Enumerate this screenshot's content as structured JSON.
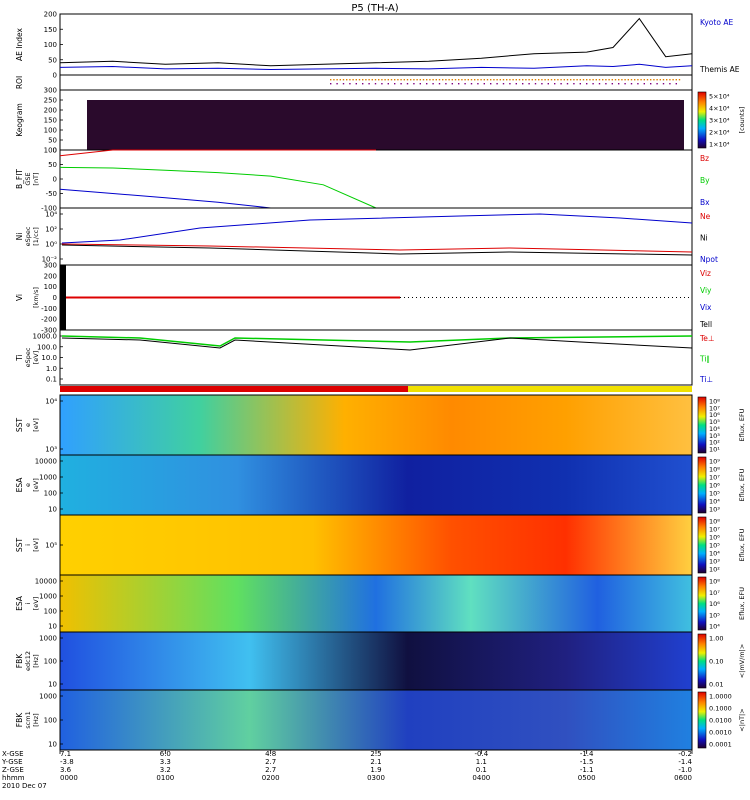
{
  "title": "P5 (TH-A)",
  "colors": {
    "red": "#dd0000",
    "green": "#00cc00",
    "blue": "#0000cc",
    "black": "#000000"
  },
  "chart_data": [
    {
      "type": "line",
      "panel": "ae",
      "ylabel": "AE Index",
      "ylim": [
        0,
        200
      ],
      "yticks": [
        "0",
        "50",
        "100",
        "150",
        "200"
      ],
      "x": [
        "0000",
        "0030",
        "0100",
        "0130",
        "0200",
        "0230",
        "0300",
        "0330",
        "0400",
        "0430",
        "0500",
        "0515",
        "0530",
        "0545",
        "0600"
      ],
      "series": [
        {
          "name": "Kyoto AE",
          "color": "blue",
          "values": [
            25,
            28,
            20,
            22,
            18,
            20,
            22,
            20,
            25,
            22,
            30,
            28,
            35,
            25,
            30
          ]
        },
        {
          "name": "Themis AE",
          "color": "black",
          "values": [
            40,
            45,
            35,
            40,
            30,
            35,
            40,
            45,
            55,
            70,
            75,
            90,
            185,
            60,
            70
          ]
        }
      ]
    },
    {
      "type": "scatter",
      "panel": "roi",
      "ylabel": "ROI"
    },
    {
      "type": "heatmap",
      "panel": "keogram",
      "ylabel": "Keogram",
      "ylim": [
        0,
        300
      ],
      "yticks": [
        "0",
        "50",
        "100",
        "150",
        "200",
        "250",
        "300"
      ],
      "colorbar_label": "[counts]",
      "colorbar_ticks": [
        "5×10⁴",
        "4×10⁴",
        "3×10⁴",
        "2×10⁴",
        "1×10⁴"
      ]
    },
    {
      "type": "line",
      "panel": "bfit",
      "ylabel": "B_FIT",
      "ysub": "GSE",
      "yunit": "[nT]",
      "ylim": [
        -100,
        100
      ],
      "yticks": [
        "-100",
        "-50",
        "0",
        "50",
        "100"
      ],
      "x": [
        "0000",
        "0030",
        "0100",
        "0130",
        "0200",
        "0230",
        "0300"
      ],
      "series": [
        {
          "name": "Bz",
          "color": "red",
          "values": [
            80,
            100,
            100,
            100,
            100,
            100,
            100
          ]
        },
        {
          "name": "By",
          "color": "green",
          "values": [
            40,
            38,
            30,
            22,
            10,
            -20,
            -100
          ]
        },
        {
          "name": "Bx",
          "color": "blue",
          "values": [
            -35,
            -50,
            -65,
            -80,
            -100,
            -100,
            -100
          ]
        }
      ]
    },
    {
      "type": "line",
      "panel": "ni",
      "ylabel": "Ni",
      "ysub": "eSpec",
      "yunit": "[1/cc]",
      "yscale": "log",
      "yticks": [
        "10⁴",
        "10²",
        "10⁰",
        "10⁻²"
      ],
      "series": [
        {
          "name": "Ne",
          "color": "red"
        },
        {
          "name": "Ni",
          "color": "black"
        },
        {
          "name": "Npot",
          "color": "blue"
        }
      ]
    },
    {
      "type": "line",
      "panel": "vi",
      "ylabel": "Vi",
      "yunit": "[km/s]",
      "ylim": [
        -300,
        300
      ],
      "yticks": [
        "300",
        "200",
        "100",
        "0",
        "-100",
        "-200",
        "-300"
      ],
      "series": [
        {
          "name": "Viz",
          "color": "red"
        },
        {
          "name": "Viy",
          "color": "green"
        },
        {
          "name": "Vix",
          "color": "blue"
        },
        {
          "name": "Tell",
          "color": "black"
        }
      ]
    },
    {
      "type": "line",
      "panel": "ti",
      "ylabel": "Ti",
      "ysub": "eSpec",
      "yunit": "[eV]",
      "yscale": "log",
      "yticks": [
        "1000.0",
        "100.0",
        "10.0",
        "1.0",
        "0.1"
      ],
      "series": [
        {
          "name": "Te⊥",
          "color": "red"
        },
        {
          "name": "Ti∥",
          "color": "green"
        },
        {
          "name": "Ti⊥",
          "color": "blue"
        }
      ]
    },
    {
      "type": "heatmap",
      "panel": "sst-e",
      "ylabel": "SST",
      "ysub": "e",
      "yunit": "[eV]",
      "yscale": "log",
      "yticks": [
        "10⁴",
        "10³"
      ],
      "colorbar_label": "Eflux, EFU",
      "colorbar_ticks": [
        "10⁸",
        "10⁷",
        "10⁶",
        "10⁵",
        "10⁴",
        "10³",
        "10²",
        "10¹"
      ]
    },
    {
      "type": "heatmap",
      "panel": "esa-e",
      "ylabel": "ESA",
      "ysub": "e",
      "yunit": "[eV]",
      "yscale": "log",
      "yticks": [
        "10000",
        "1000",
        "100",
        "10"
      ],
      "colorbar_label": "Eflux, EFU",
      "colorbar_ticks": [
        "10⁹",
        "10⁸",
        "10⁷",
        "10⁶",
        "10⁵",
        "10⁴",
        "10³"
      ]
    },
    {
      "type": "heatmap",
      "panel": "sst-i",
      "ylabel": "SST",
      "ysub": "i",
      "yunit": "[eV]",
      "yscale": "log",
      "yticks": [
        "10⁵"
      ],
      "colorbar_label": "Eflux, EFU",
      "colorbar_ticks": [
        "10⁸",
        "10⁷",
        "10⁶",
        "10⁵",
        "10⁴",
        "10³",
        "10²"
      ]
    },
    {
      "type": "heatmap",
      "panel": "esa-i",
      "ylabel": "ESA",
      "ysub": "i",
      "yunit": "[eV]",
      "yscale": "log",
      "yticks": [
        "10000",
        "1000",
        "100",
        "10"
      ],
      "colorbar_label": "Eflux, EFU",
      "colorbar_ticks": [
        "10⁸",
        "10⁷",
        "10⁶",
        "10⁵",
        "10⁴"
      ]
    },
    {
      "type": "heatmap",
      "panel": "fbk-e",
      "ylabel": "FBK",
      "ysub": "edc12",
      "yunit": "[Hz]",
      "yscale": "log",
      "yticks": [
        "1000",
        "100",
        "10"
      ],
      "colorbar_label": "<|mV/m|>",
      "colorbar_ticks": [
        "1.00",
        "0.10",
        "0.01"
      ]
    },
    {
      "type": "heatmap",
      "panel": "fbk-b",
      "ylabel": "FBK",
      "ysub": "scm1",
      "yunit": "[Hz]",
      "yscale": "log",
      "yticks": [
        "1000",
        "100",
        "10"
      ],
      "colorbar_label": "<|nT|>",
      "colorbar_ticks": [
        "1.0000",
        "0.1000",
        "0.0100",
        "0.0010",
        "0.0001"
      ]
    }
  ],
  "x_axis": {
    "row_labels": [
      "X-GSE",
      "Y-GSE",
      "Z-GSE",
      "hhmm",
      "2010 Dec 07"
    ],
    "columns": [
      [
        "7.1",
        "-3.8",
        "3.6",
        "0000"
      ],
      [
        "6.0",
        "3.3",
        "3.2",
        "0100"
      ],
      [
        "4.8",
        "2.7",
        "2.7",
        "0200"
      ],
      [
        "2.5",
        "2.1",
        "1.9",
        "0300"
      ],
      [
        "-0.4",
        "1.1",
        "0.1",
        "0400"
      ],
      [
        "-1.4",
        "-1.5",
        "-1.1",
        "0500"
      ],
      [
        "-0.2",
        "-1.4",
        "-1.0",
        "0600"
      ]
    ]
  }
}
